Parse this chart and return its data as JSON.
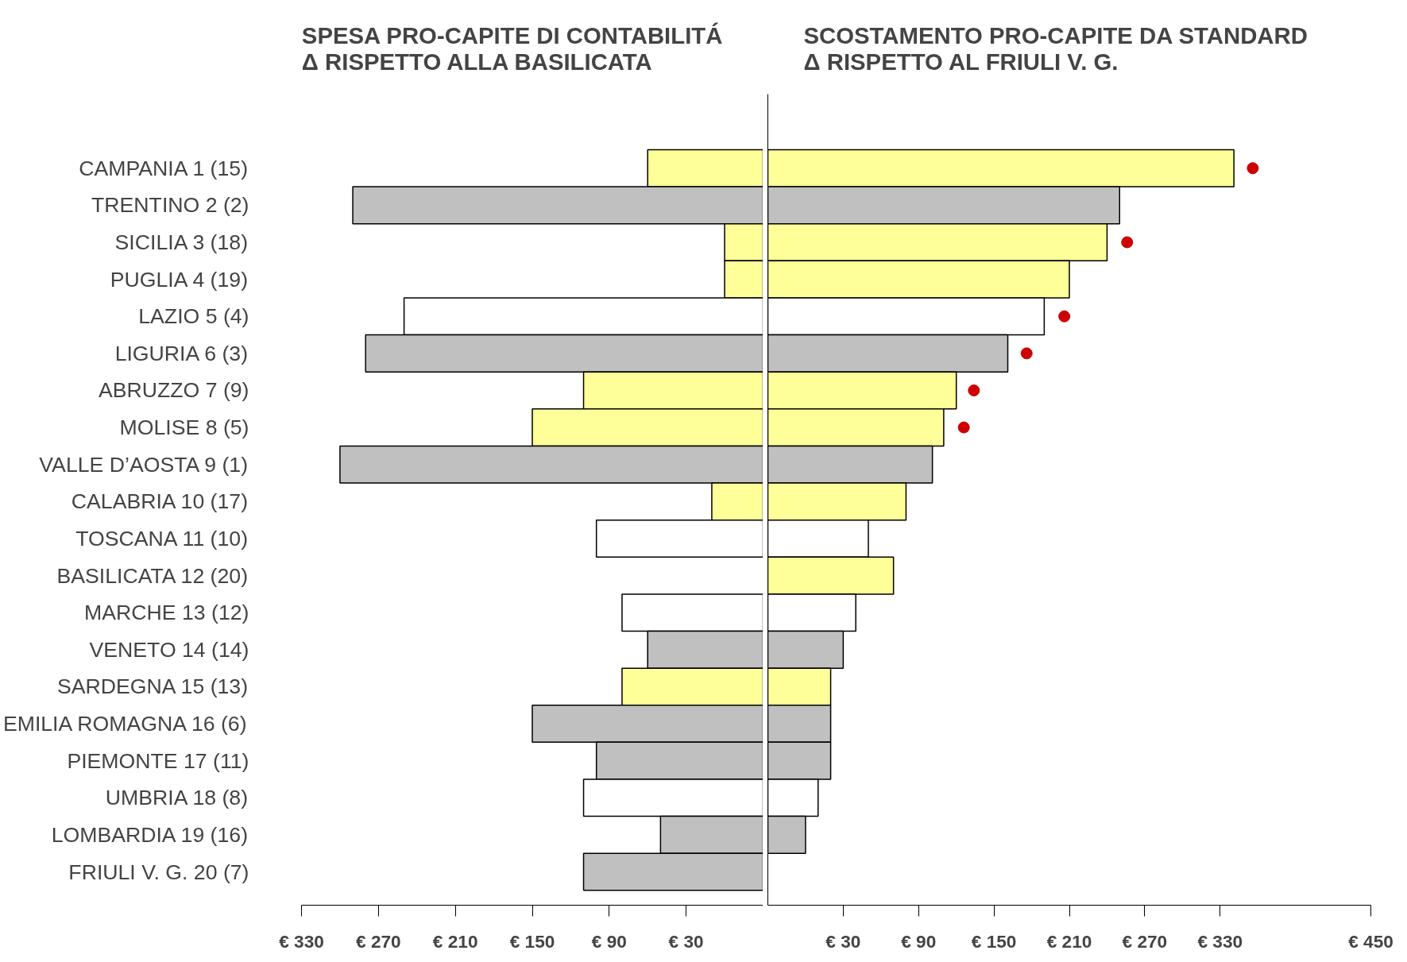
{
  "chart_data": [
    {
      "type": "bar",
      "orientation": "horizontal",
      "title": "SPESA PRO-CAPITE DI CONTABILITÁ\nΔ RISPETTO ALLA BASILICATA",
      "categories": [
        "CAMPANIA 1 (15)",
        "TRENTINO 2 (2)",
        "SICILIA 3 (18)",
        "PUGLIA 4 (19)",
        "LAZIO 5 (4)",
        "LIGURIA 6 (3)",
        "ABRUZZO 7 (9)",
        "MOLISE 8 (5)",
        "VALLE D’AOSTA 9 (1)",
        "CALABRIA 10 (17)",
        "TOSCANA 11 (10)",
        "BASILICATA 12 (20)",
        "MARCHE 13 (12)",
        "VENETO 14 (14)",
        "SARDEGNA 15 (13)",
        "EMILIA ROMAGNA 16 (6)",
        "PIEMONTE 17 (11)",
        "UMBRIA 18 (8)",
        "LOMBARDIA 19 (16)",
        "FRIULI V. G. 20 (7)"
      ],
      "base": [
        -30,
        -30,
        -30,
        -30,
        -30,
        -30,
        -30,
        -30,
        -30,
        -30,
        -30,
        null,
        -30,
        -30,
        -30,
        -30,
        -30,
        -30,
        -30,
        -30
      ],
      "values": [
        90,
        320,
        30,
        30,
        280,
        310,
        140,
        180,
        330,
        40,
        130,
        null,
        110,
        90,
        110,
        180,
        130,
        140,
        80,
        140
      ],
      "colors": [
        "#ffff99",
        "#c0c0c0",
        "#ffff99",
        "#ffff99",
        "#ffffff",
        "#c0c0c0",
        "#ffff99",
        "#ffff99",
        "#c0c0c0",
        "#ffff99",
        "#ffffff",
        "#ffff99",
        "#ffffff",
        "#c0c0c0",
        "#ffff99",
        "#c0c0c0",
        "#c0c0c0",
        "#ffffff",
        "#c0c0c0",
        "#c0c0c0"
      ],
      "xlim": [
        330,
        -30
      ],
      "xticks": [
        {
          "value": 330,
          "label": "€ 330"
        },
        {
          "value": 270,
          "label": "€ 270"
        },
        {
          "value": 210,
          "label": "€ 210"
        },
        {
          "value": 150,
          "label": "€ 150"
        },
        {
          "value": 90,
          "label": "€ 90"
        },
        {
          "value": 30,
          "label": "€ 30"
        }
      ],
      "grid": false
    },
    {
      "type": "bar",
      "orientation": "horizontal",
      "title": "SCOSTAMENTO PRO-CAPITE DA STANDARD\nΔ RISPETTO AL FRIULI V. G.",
      "categories": [
        null,
        null,
        null,
        null,
        null,
        null,
        null,
        null,
        null,
        null,
        null,
        null,
        null,
        null,
        null,
        null,
        null,
        null,
        null,
        null
      ],
      "series": [
        {
          "type": "bar",
          "base": [
            -30,
            -30,
            -30,
            -30,
            -30,
            -30,
            -30,
            -30,
            -30,
            -30,
            -30,
            -30,
            -30,
            -30,
            -30,
            -30,
            -30,
            -30,
            -30,
            null
          ],
          "values": [
            371,
            280,
            270,
            240,
            220,
            191,
            150,
            140,
            131,
            110,
            80,
            100,
            70,
            60,
            50,
            50,
            50,
            40,
            30,
            null
          ],
          "colors": [
            "#ffff99",
            "#c0c0c0",
            "#ffff99",
            "#ffff99",
            "#ffffff",
            "#c0c0c0",
            "#ffff99",
            "#ffff99",
            "#c0c0c0",
            "#ffff99",
            "#ffffff",
            "#ffff99",
            "#ffffff",
            "#c0c0c0",
            "#ffff99",
            "#c0c0c0",
            "#c0c0c0",
            "#ffffff",
            "#c0c0c0",
            "#c0c0c0"
          ]
        },
        {
          "type": "scatter",
          "color": "#cc0000",
          "marker": "circle",
          "values": [
            356,
            null,
            256,
            null,
            206,
            176,
            134,
            126,
            null,
            null,
            null,
            null,
            null,
            null,
            null,
            null,
            null,
            null,
            null,
            null
          ]
        }
      ],
      "xlim": [
        -30,
        450
      ],
      "xticks": [
        {
          "value": 30,
          "label": "€ 30"
        },
        {
          "value": 90,
          "label": "€ 90"
        },
        {
          "value": 150,
          "label": "€ 150"
        },
        {
          "value": 210,
          "label": "€ 210"
        },
        {
          "value": 270,
          "label": "€ 270"
        },
        {
          "value": 330,
          "label": "€ 330"
        },
        {
          "value": 450,
          "label": "€ 450"
        }
      ],
      "tick_labels": "x",
      "grid": false
    }
  ]
}
